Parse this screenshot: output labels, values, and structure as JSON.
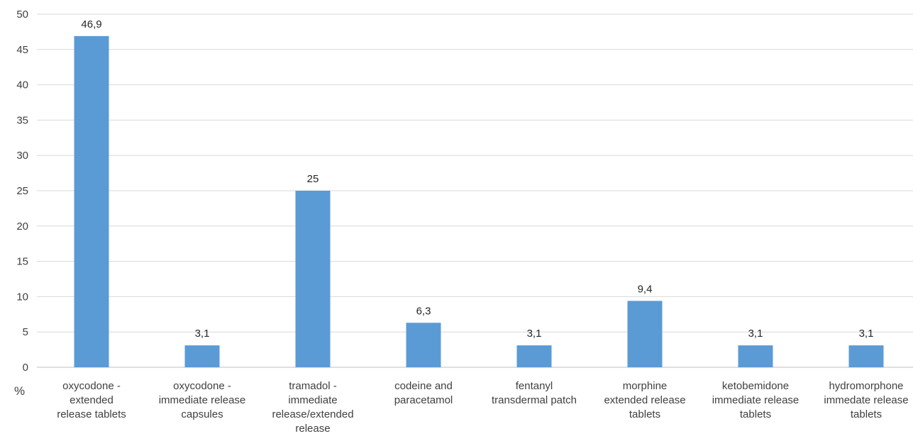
{
  "chart_data": {
    "type": "bar",
    "categories": [
      [
        "oxycodone -",
        "extended",
        "release tablets"
      ],
      [
        "oxycodone -",
        "immediate release",
        "capsules"
      ],
      [
        "tramadol -",
        "immediate",
        "release/extended",
        "release"
      ],
      [
        "codeine and",
        "paracetamol"
      ],
      [
        "fentanyl",
        "transdermal patch"
      ],
      [
        "morphine",
        "extended release",
        "tablets"
      ],
      [
        "ketobemidone",
        "immediate release",
        "tablets"
      ],
      [
        "hydromorphone",
        "immedate release",
        "tablets"
      ]
    ],
    "values": [
      46.9,
      3.1,
      25,
      6.3,
      3.1,
      9.4,
      3.1,
      3.1
    ],
    "data_labels": [
      "46,9",
      "3,1",
      "25",
      "6,3",
      "3,1",
      "9,4",
      "3,1",
      "3,1"
    ],
    "y_ticks": [
      "0",
      "5",
      "10",
      "15",
      "20",
      "25",
      "30",
      "35",
      "40",
      "45",
      "50"
    ],
    "ylim": [
      0,
      50
    ],
    "unit_label": "%",
    "bar_color": "#5b9bd5",
    "grid_color": "#d9d9d9",
    "grid": true
  }
}
